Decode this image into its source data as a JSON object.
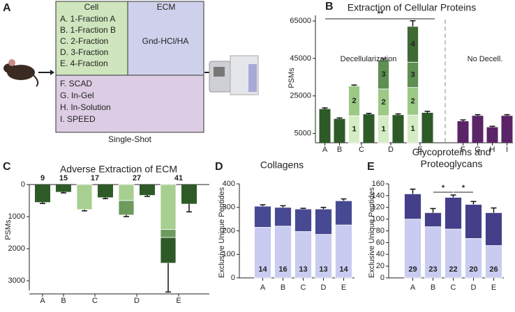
{
  "diagram": {
    "panel": "A",
    "headers": [
      "Cell",
      "ECM"
    ],
    "cell_methods": [
      "A. 1-Fraction A",
      "B. 1-Fraction B",
      "C. 2-Fraction",
      "D. 3-Fraction",
      "E. 4-Fraction"
    ],
    "ecm_method": "Gnd-HCl/HA",
    "single_shot_methods": [
      "F. SCAD",
      "G. In-Gel",
      "H. In-Solution",
      "I. SPEED"
    ],
    "single_shot_label": "Single-Shot"
  },
  "chart_data": [
    {
      "type": "bar",
      "panel": "B",
      "title": "Extraction of Cellular Proteins",
      "ylabel": "PSMs",
      "categories": [
        "A",
        "B",
        "C",
        "D",
        "E",
        "F",
        "G",
        "H",
        "I"
      ],
      "values": [
        18000,
        12750,
        15200,
        14800,
        16000,
        11500,
        14400,
        8300,
        14400
      ],
      "errors": [
        600,
        500,
        500,
        600,
        800,
        700,
        600,
        500,
        600
      ],
      "colors": [
        "#2d5a27",
        "#2d5a27",
        "#2d5a27",
        "#2d5a27",
        "#2d5a27",
        "#5a2466",
        "#5a2466",
        "#5a2466",
        "#5a2466"
      ],
      "series": [
        {
          "name": "1",
          "color": "#d4ecc4",
          "values": [
            null,
            null,
            14400,
            14400,
            14800,
            null,
            null,
            null,
            null
          ]
        },
        {
          "name": "2",
          "color": "#9cc986",
          "values": [
            null,
            null,
            15900,
            14300,
            14700,
            null,
            null,
            null,
            null
          ],
          "errors": [
            null,
            null,
            500,
            null,
            null,
            null,
            null,
            null,
            null
          ]
        },
        {
          "name": "3",
          "color": "#5f8f52",
          "values": [
            null,
            null,
            null,
            15500,
            13500,
            null,
            null,
            null,
            null
          ],
          "errors": [
            null,
            null,
            null,
            600,
            null,
            null,
            null,
            null,
            null
          ]
        },
        {
          "name": "4",
          "color": "#3f6a35",
          "values": [
            null,
            null,
            null,
            null,
            19100,
            null,
            null,
            null,
            null
          ],
          "errors": [
            null,
            null,
            null,
            null,
            3000,
            null,
            null,
            null,
            null
          ]
        }
      ],
      "ylim": [
        0,
        68000
      ],
      "yticks": [
        5000,
        25000,
        45000,
        65000
      ],
      "annotations": [
        "**",
        "Decellularization",
        "No Decell."
      ]
    },
    {
      "type": "bar",
      "panel": "C",
      "title": "Adverse Extraction of ECM",
      "ylabel": "PSMs",
      "categories": [
        "A",
        "B",
        "C",
        "D",
        "E"
      ],
      "values": [
        550,
        230,
        400,
        330,
        600
      ],
      "errors": [
        40,
        30,
        40,
        40,
        250
      ],
      "colors": [
        "#2d5a27",
        "#2d5a27",
        "#2d5a27",
        "#2d5a27",
        "#2d5a27"
      ],
      "series": [
        {
          "color": "#a6cf90",
          "values": [
            null,
            null,
            780,
            500,
            1400
          ],
          "errors": [
            null,
            null,
            40,
            null,
            null
          ]
        },
        {
          "color": "#6d9a5d",
          "values": [
            null,
            null,
            null,
            450,
            250
          ],
          "errors": [
            null,
            null,
            null,
            50,
            null
          ]
        },
        {
          "color": "#2d5a27",
          "values": [
            null,
            null,
            null,
            null,
            800
          ],
          "errors": [
            null,
            null,
            null,
            null,
            900
          ]
        }
      ],
      "counts": [
        9,
        15,
        17,
        27,
        41
      ],
      "ylim": [
        0,
        3300
      ],
      "yticks": [
        0,
        1000,
        2000,
        3000
      ],
      "inverted": true
    },
    {
      "type": "bar",
      "panel": "D",
      "title": "Collagens",
      "ylabel": "Exclusive Unique Peptides",
      "categories": [
        "A",
        "B",
        "C",
        "D",
        "E"
      ],
      "series": [
        {
          "color": "#c9cbf0",
          "values": [
            215,
            220,
            197,
            185,
            225
          ],
          "errors": [
            3,
            3,
            2,
            2,
            20
          ]
        },
        {
          "color": "#474a93",
          "values": [
            90,
            80,
            96,
            108,
            103
          ],
          "errors": [
            6,
            7,
            3,
            7,
            8
          ]
        }
      ],
      "counts": [
        14,
        16,
        13,
        13,
        14
      ],
      "ylim": [
        0,
        400
      ],
      "yticks": [
        0,
        100,
        200,
        300,
        400
      ]
    },
    {
      "type": "bar",
      "panel": "E",
      "title": "Glycoproteins and Proteoglycans",
      "ylabel": "Exclusive Unique Peptides",
      "categories": [
        "A",
        "B",
        "C",
        "D",
        "E"
      ],
      "series": [
        {
          "color": "#c9cbf0",
          "values": [
            100,
            87,
            83,
            67,
            55
          ],
          "errors": [
            10,
            5,
            3,
            8,
            40
          ]
        },
        {
          "color": "#453f8a",
          "values": [
            43,
            24,
            54,
            58,
            56
          ],
          "errors": [
            8,
            7,
            4,
            5,
            8
          ]
        }
      ],
      "counts": [
        29,
        23,
        22,
        20,
        26
      ],
      "ylim": [
        0,
        160
      ],
      "yticks": [
        0,
        20,
        40,
        60,
        80,
        100,
        120,
        140,
        160
      ],
      "annotations": [
        "*",
        "*"
      ]
    }
  ]
}
